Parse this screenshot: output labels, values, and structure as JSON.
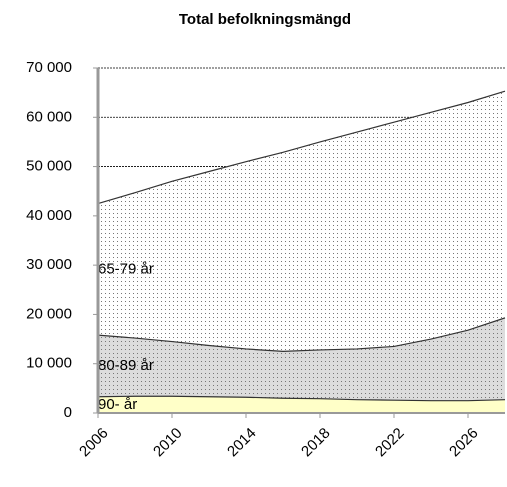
{
  "chart_data": {
    "type": "stacked_area",
    "title": "Total befolkningsmängd",
    "x": [
      2006,
      2008,
      2010,
      2012,
      2014,
      2016,
      2018,
      2020,
      2022,
      2024,
      2026,
      2028
    ],
    "series": [
      {
        "name": "90- år",
        "color": "#ffffc8",
        "values": [
          3300,
          3400,
          3400,
          3300,
          3200,
          3000,
          2900,
          2700,
          2600,
          2500,
          2500,
          2700
        ]
      },
      {
        "name": "80-89 år",
        "color": "#dcdcdc",
        "values": [
          12500,
          11800,
          11100,
          10400,
          9800,
          9500,
          9900,
          10300,
          10900,
          12500,
          14300,
          16600
        ]
      },
      {
        "name": "65-79 år",
        "color": "#ffffff",
        "values": [
          26700,
          29500,
          32500,
          35300,
          38000,
          40400,
          42200,
          44000,
          45500,
          46000,
          46200,
          46000
        ]
      }
    ],
    "xlim": [
      2006,
      2028
    ],
    "xticks": [
      2006,
      2010,
      2014,
      2018,
      2022,
      2026
    ],
    "ylim": [
      0,
      70000
    ],
    "yticks": [
      0,
      {
        "value": 10000,
        "label": "10 000"
      },
      {
        "value": 20000,
        "label": "20 000"
      },
      {
        "value": 30000,
        "label": "30 000"
      },
      {
        "value": 40000,
        "label": "40 000"
      },
      {
        "value": 50000,
        "label": "50 000"
      },
      {
        "value": 60000,
        "label": "60 000"
      },
      {
        "value": 70000,
        "label": "70 000"
      }
    ],
    "grid": true
  }
}
